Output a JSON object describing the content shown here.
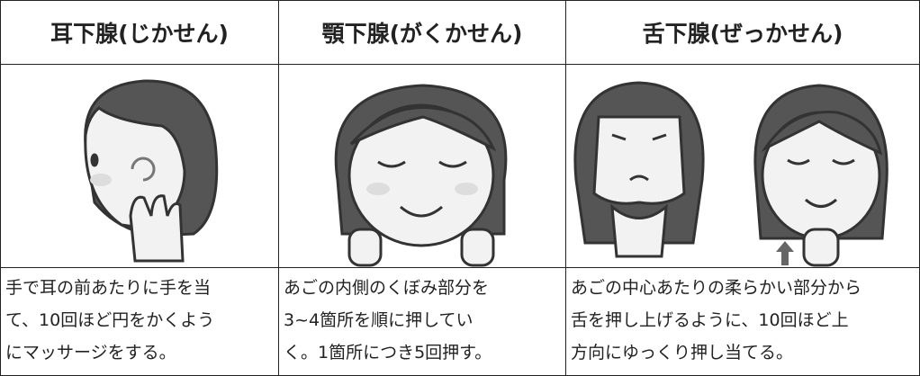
{
  "columns": [
    {
      "header": "耳下腺(じかせん)",
      "description": [
        "手で耳の前あたりに手を当",
        "て、10回ほど円をかくよう",
        "にマッサージをする。"
      ]
    },
    {
      "header": "顎下腺(がくかせん)",
      "description": [
        "あごの内側のくぼみ部分を",
        "3~4箇所を順に押してい",
        "く。1箇所につき5回押す。"
      ]
    },
    {
      "header": "舌下腺(ぜっかせん)",
      "description": [
        "あごの中心あたりの柔らかい部分から",
        "舌を押し上げるように、10回ほど上",
        "方向にゆっくり押し当てる。"
      ]
    }
  ]
}
